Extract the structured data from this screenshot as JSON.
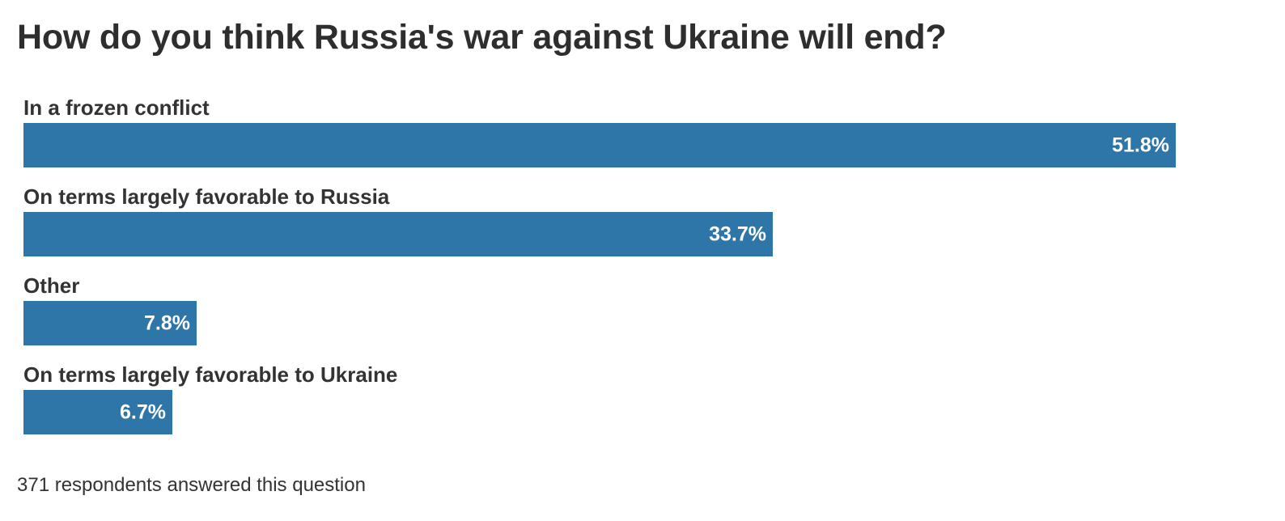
{
  "chart_data": {
    "type": "bar",
    "orientation": "horizontal",
    "title": "How do you think Russia's war against Ukraine will end?",
    "categories": [
      "In a frozen conflict",
      "On terms largely favorable to Russia",
      "Other",
      "On terms largely favorable to Ukraine"
    ],
    "values": [
      51.8,
      33.7,
      7.8,
      6.7
    ],
    "value_labels": [
      "51.8%",
      "33.7%",
      "7.8%",
      "6.7%"
    ],
    "unit": "%",
    "xlim": [
      0,
      51.8
    ],
    "grid": false,
    "legend": "none",
    "bar_color": "#2e75a8",
    "footnote": "371 respondents answered this question"
  }
}
